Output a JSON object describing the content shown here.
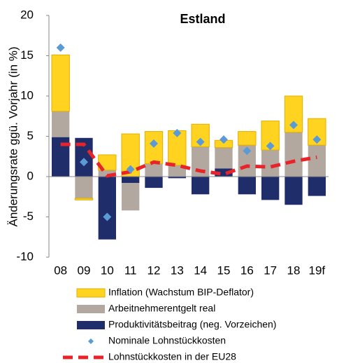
{
  "chart_data": {
    "type": "bar",
    "title": "Estland",
    "y_label": "Änderungsrate ggü. Vorjahr (in %)",
    "categories": [
      "08",
      "09",
      "10",
      "11",
      "12",
      "13",
      "14",
      "15",
      "16",
      "17",
      "18",
      "19f"
    ],
    "ylim": [
      -10,
      20
    ],
    "yticks": [
      -10,
      -5,
      0,
      5,
      10,
      15,
      20
    ],
    "series": [
      {
        "name": "Inflation (Wachstum BIP-Deflator)",
        "type": "bar",
        "color": "#FFD320",
        "values": [
          7.0,
          -0.2,
          1.9,
          5.3,
          4.0,
          4.3,
          2.8,
          0.9,
          1.7,
          3.6,
          4.5,
          3.3
        ]
      },
      {
        "name": "Arbeitnehmerentgelt real",
        "type": "bar",
        "color": "#B3A8A0",
        "values": [
          3.2,
          -2.7,
          0.8,
          -3.4,
          1.6,
          1.4,
          3.7,
          2.6,
          3.9,
          3.3,
          5.5,
          3.9
        ]
      },
      {
        "name": "Produktivitätsbeitrag (neg. Vorzeichen)",
        "type": "bar",
        "color": "#1F2D6B",
        "values": [
          4.9,
          4.8,
          -7.8,
          -0.8,
          -1.4,
          -0.2,
          -2.2,
          1.0,
          -2.2,
          -2.9,
          -3.5,
          -2.4
        ]
      },
      {
        "name": "Nominale Lohnstückkosten",
        "type": "scatter",
        "color": "#5B9BD5",
        "values": [
          16.0,
          1.8,
          -5.0,
          0.9,
          4.1,
          5.4,
          4.3,
          4.6,
          3.2,
          3.8,
          6.4,
          4.6
        ]
      },
      {
        "name": "Lohnstückkosten in der EU28",
        "type": "line",
        "color": "#E8242A",
        "values": [
          4.0,
          4.0,
          0.1,
          0.6,
          1.8,
          1.4,
          0.7,
          0.3,
          1.3,
          1.2,
          1.9,
          2.4
        ]
      }
    ]
  }
}
